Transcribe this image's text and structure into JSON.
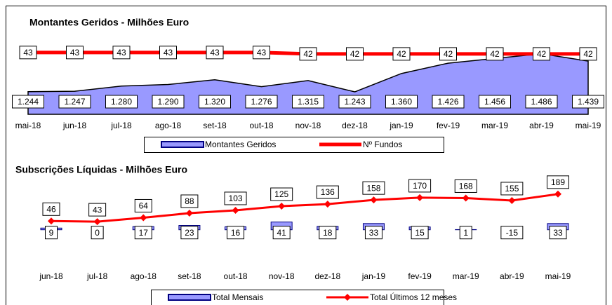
{
  "chart_data": [
    {
      "type": "area",
      "title": "Montantes Geridos - Milhões Euro",
      "categories": [
        "mai-18",
        "jun-18",
        "jul-18",
        "ago-18",
        "set-18",
        "out-18",
        "nov-18",
        "dez-18",
        "jan-19",
        "fev-19",
        "mar-19",
        "abr-19",
        "mai-19"
      ],
      "ylim": [
        1100,
        1650
      ],
      "y2lim": [
        0,
        60
      ],
      "series": [
        {
          "name": "Montantes Geridos",
          "kind": "area",
          "color": "#9999ff",
          "values": [
            1244,
            1247,
            1280,
            1290,
            1320,
            1276,
            1315,
            1243,
            1360,
            1426,
            1456,
            1486,
            1439
          ],
          "value_labels": [
            "1.244",
            "1.247",
            "1.280",
            "1.290",
            "1.320",
            "1.276",
            "1.315",
            "1.243",
            "1.360",
            "1.426",
            "1.456",
            "1.486",
            "1.439"
          ]
        },
        {
          "name": "Nº Fundos",
          "kind": "line",
          "axis": "y2",
          "color": "#ff0000",
          "values": [
            43,
            43,
            43,
            43,
            43,
            43,
            42,
            42,
            42,
            42,
            42,
            42,
            42
          ]
        }
      ]
    },
    {
      "type": "bar",
      "title": "Subscrições Líquidas - Milhões Euro",
      "categories": [
        "jun-18",
        "jul-18",
        "ago-18",
        "set-18",
        "out-18",
        "nov-18",
        "dez-18",
        "jan-19",
        "fev-19",
        "mar-19",
        "abr-19",
        "mai-19"
      ],
      "ylim": [
        -120,
        270
      ],
      "series": [
        {
          "name": "Total Mensais",
          "kind": "bar",
          "color": "#9999ff",
          "values": [
            9,
            0,
            17,
            23,
            16,
            41,
            18,
            33,
            15,
            1,
            -15,
            33
          ]
        },
        {
          "name": "Total Últimos 12 meses",
          "kind": "line",
          "color": "#ff0000",
          "marker": "diamond",
          "values": [
            46,
            43,
            64,
            88,
            103,
            125,
            136,
            158,
            170,
            168,
            155,
            189
          ]
        }
      ]
    }
  ]
}
